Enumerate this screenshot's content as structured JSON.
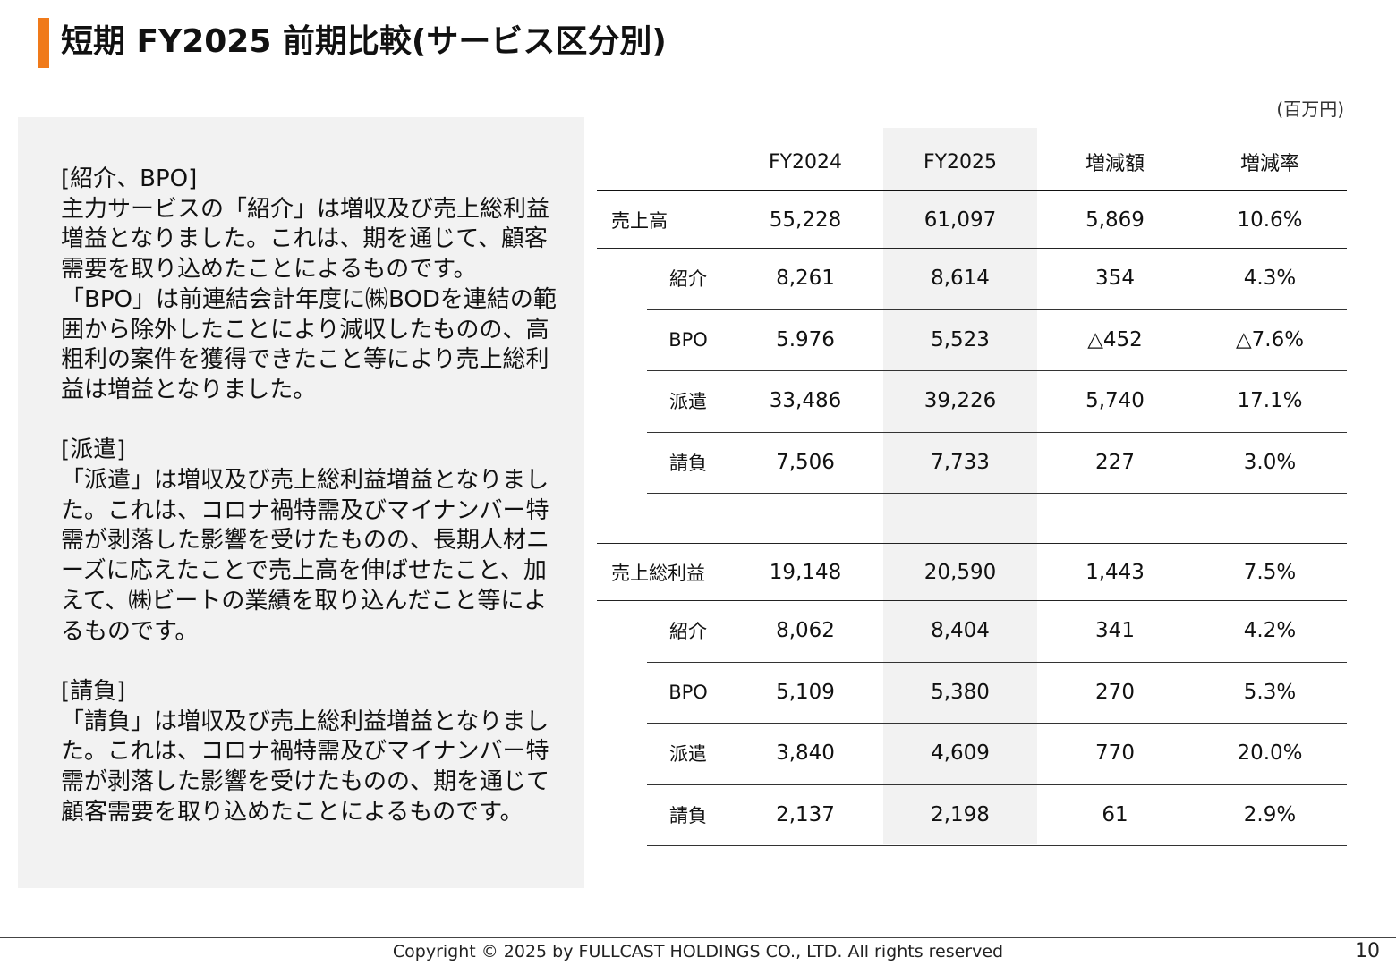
{
  "title": "短期 FY2025 前期比較(サービス区分別)",
  "colors": {
    "accent": "#f07a1a",
    "panel": "#f2f2f2"
  },
  "commentary": [
    "[紹介、BPO]",
    "主力サービスの「紹介」は増収及び売上総利益増益となりました。これは、期を通じて、顧客需要を取り込めたことによるものです。",
    "「BPO」は前連結会計年度に㈱BODを連結の範囲から除外したことにより減収したものの、高粗利の案件を獲得できたこと等により売上総利益は増益となりました。",
    "",
    "[派遣]",
    "「派遣」は増収及び売上総利益増益となりました。これは、コロナ禍特需及びマイナンバー特需が剥落した影響を受けたものの、長期人材ニーズに応えたことで売上高を伸ばせたこと、加えて、㈱ビートの業績を取り込んだこと等によるものです。",
    "",
    "[請負]",
    "「請負」は増収及び売上総利益増益となりました。これは、コロナ禍特需及びマイナンバー特需が剥落した影響を受けたものの、期を通じて顧客需要を取り込めたことによるものです。"
  ],
  "table": {
    "unit": "(百万円)",
    "headers": [
      "",
      "FY2024",
      "FY2025",
      "増減額",
      "増減率"
    ],
    "sections": [
      {
        "total": [
          "売上高",
          "55,228",
          "61,097",
          "5,869",
          "10.6%"
        ],
        "rows": [
          [
            "紹介",
            "8,261",
            "8,614",
            "354",
            "4.3%"
          ],
          [
            "BPO",
            "5.976",
            "5,523",
            "△452",
            "△7.6%"
          ],
          [
            "派遣",
            "33,486",
            "39,226",
            "5,740",
            "17.1%"
          ],
          [
            "請負",
            "7,506",
            "7,733",
            "227",
            "3.0%"
          ]
        ]
      },
      {
        "total": [
          "売上総利益",
          "19,148",
          "20,590",
          "1,443",
          "7.5%"
        ],
        "rows": [
          [
            "紹介",
            "8,062",
            "8,404",
            "341",
            "4.2%"
          ],
          [
            "BPO",
            "5,109",
            "5,380",
            "270",
            "5.3%"
          ],
          [
            "派遣",
            "3,840",
            "4,609",
            "770",
            "20.0%"
          ],
          [
            "請負",
            "2,137",
            "2,198",
            "61",
            "2.9%"
          ]
        ]
      }
    ]
  },
  "footer": {
    "copyright": "Copyright © 2025 by FULLCAST HOLDINGS CO., LTD. All rights reserved",
    "page": "10"
  }
}
